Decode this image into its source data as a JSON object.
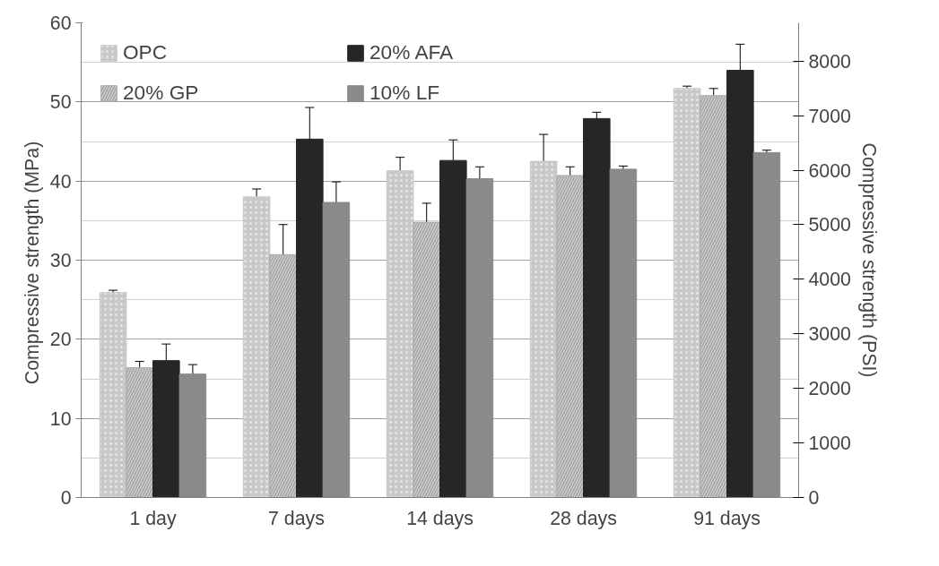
{
  "chart_data": {
    "type": "bar",
    "ylabel": "Compressive strength  (MPa)",
    "y2label": "Compressive strength (PSI)",
    "categories": [
      "1 day",
      "7 days",
      "14 days",
      "28 days",
      "91 days"
    ],
    "series": [
      {
        "name": "OPC",
        "color": "#c8c8c8",
        "values": [
          25.9,
          38.0,
          41.3,
          42.5,
          51.7
        ],
        "errors": [
          0.3,
          1.0,
          1.7,
          3.4,
          0.3
        ]
      },
      {
        "name": "20% GP",
        "color": "#a8a8a8",
        "values": [
          16.4,
          30.7,
          34.8,
          40.7,
          50.8
        ],
        "errors": [
          0.8,
          3.8,
          2.4,
          1.1,
          0.9
        ]
      },
      {
        "name": "20% AFA",
        "color": "#262626",
        "values": [
          17.3,
          45.3,
          42.6,
          47.9,
          54.0
        ],
        "errors": [
          2.1,
          4.0,
          2.6,
          0.8,
          3.3
        ]
      },
      {
        "name": "10% LF",
        "color": "#8a8a8a",
        "values": [
          15.6,
          37.3,
          40.3,
          41.5,
          43.6
        ],
        "errors": [
          1.2,
          2.6,
          1.5,
          0.4,
          0.3
        ]
      }
    ],
    "ylim": [
      0,
      60
    ],
    "yticks": [
      0,
      10,
      20,
      30,
      40,
      50,
      60
    ],
    "y2lim": [
      0,
      8702
    ],
    "y2ticks": [
      0,
      1000,
      2000,
      3000,
      4000,
      5000,
      6000,
      7000,
      8000
    ],
    "grid": "y",
    "legend": "top left"
  }
}
